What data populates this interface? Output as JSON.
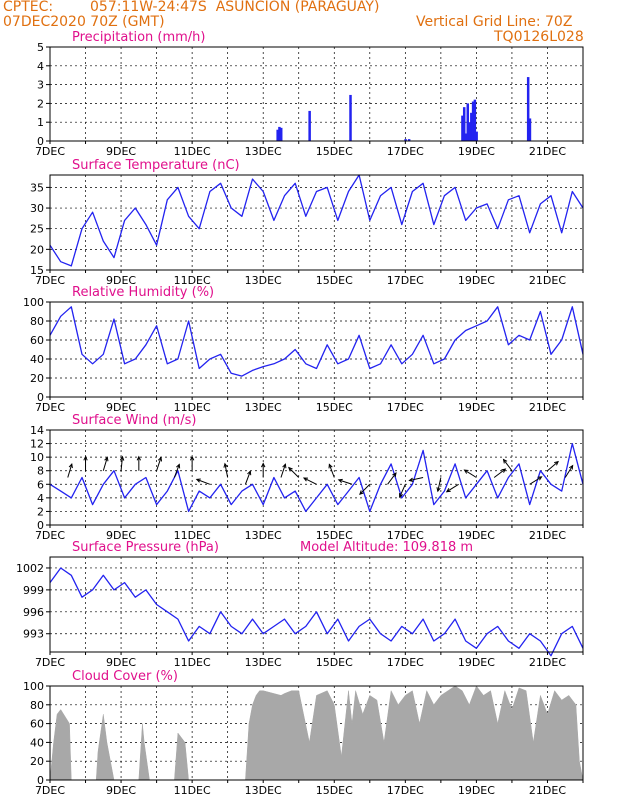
{
  "header": {
    "source": "CPTEC:",
    "location": "057:11W-24:47S  ASUNCION (PARAGUAY)",
    "init_time": "07DEC2020 70Z (GMT)",
    "grid_line": "Vertical Grid Line: 70Z",
    "run_id": "TQ0126L028"
  },
  "colors": {
    "header_text": "#e07010",
    "panel_title": "#e0108c",
    "series": "#2323f0",
    "cloud": "#a8a8a8",
    "arrow": "#000000"
  },
  "chart_data": [
    {
      "type": "bar",
      "title": "Precipitation  (mm/h)",
      "ylim": [
        0,
        5
      ],
      "yticks": [
        "0",
        "1",
        "2",
        "3",
        "4",
        "5"
      ],
      "x_start_day": 7,
      "xticks": [
        "7DEC",
        "9DEC",
        "11DEC",
        "13DEC",
        "15DEC",
        "17DEC",
        "19DEC",
        "21DEC"
      ],
      "x": [
        13.4,
        13.45,
        13.5,
        14.3,
        15.45,
        17.0,
        17.1,
        18.6,
        18.65,
        18.7,
        18.75,
        18.8,
        18.85,
        18.9,
        18.95,
        19.0,
        20.45,
        20.5
      ],
      "values": [
        0.6,
        0.75,
        0.7,
        1.6,
        2.45,
        0.1,
        0.1,
        1.35,
        1.8,
        0.4,
        2.0,
        1.0,
        1.5,
        2.1,
        2.2,
        0.5,
        3.4,
        1.2
      ],
      "grid": true
    },
    {
      "type": "line",
      "title": "Surface Temperature (nC)",
      "ylim": [
        15,
        38
      ],
      "yticks": [
        "15",
        "20",
        "25",
        "30",
        "35"
      ],
      "x_start_day": 7,
      "xticks": [
        "7DEC",
        "9DEC",
        "11DEC",
        "13DEC",
        "15DEC",
        "17DEC",
        "19DEC",
        "21DEC"
      ],
      "x": [
        7.0,
        7.3,
        7.6,
        7.9,
        8.2,
        8.5,
        8.8,
        9.1,
        9.4,
        9.7,
        10.0,
        10.3,
        10.6,
        10.9,
        11.2,
        11.5,
        11.8,
        12.1,
        12.4,
        12.7,
        13.0,
        13.3,
        13.6,
        13.9,
        14.2,
        14.5,
        14.8,
        15.1,
        15.4,
        15.7,
        16.0,
        16.3,
        16.6,
        16.9,
        17.2,
        17.5,
        17.8,
        18.1,
        18.4,
        18.7,
        19.0,
        19.3,
        19.6,
        19.9,
        20.2,
        20.5,
        20.8,
        21.1,
        21.4,
        21.7,
        22.0
      ],
      "values": [
        21,
        17,
        16,
        25,
        29,
        22,
        18,
        27,
        30,
        26,
        21,
        32,
        35,
        28,
        25,
        34,
        36,
        30,
        28,
        37,
        34,
        27,
        33,
        36,
        28,
        34,
        35,
        27,
        34,
        38,
        27,
        33,
        35,
        26,
        34,
        36,
        26,
        33,
        35,
        27,
        30,
        31,
        25,
        32,
        33,
        24,
        31,
        33,
        24,
        34,
        30
      ],
      "grid": true
    },
    {
      "type": "line",
      "title": "Relative Humidity (%)",
      "ylim": [
        0,
        100
      ],
      "yticks": [
        "0",
        "20",
        "40",
        "60",
        "80",
        "100"
      ],
      "x_start_day": 7,
      "xticks": [
        "7DEC",
        "9DEC",
        "11DEC",
        "13DEC",
        "15DEC",
        "17DEC",
        "19DEC",
        "21DEC"
      ],
      "x": [
        7.0,
        7.3,
        7.6,
        7.9,
        8.2,
        8.5,
        8.8,
        9.1,
        9.4,
        9.7,
        10.0,
        10.3,
        10.6,
        10.9,
        11.2,
        11.5,
        11.8,
        12.1,
        12.4,
        12.7,
        13.0,
        13.3,
        13.6,
        13.9,
        14.2,
        14.5,
        14.8,
        15.1,
        15.4,
        15.7,
        16.0,
        16.3,
        16.6,
        16.9,
        17.2,
        17.5,
        17.8,
        18.1,
        18.4,
        18.7,
        19.0,
        19.3,
        19.6,
        19.9,
        20.2,
        20.5,
        20.8,
        21.1,
        21.4,
        21.7,
        22.0
      ],
      "values": [
        65,
        85,
        95,
        45,
        35,
        45,
        82,
        35,
        40,
        55,
        75,
        35,
        40,
        80,
        30,
        40,
        45,
        25,
        22,
        28,
        32,
        35,
        40,
        50,
        35,
        30,
        55,
        35,
        40,
        65,
        30,
        35,
        55,
        35,
        45,
        65,
        35,
        40,
        60,
        70,
        75,
        80,
        95,
        55,
        65,
        60,
        90,
        45,
        60,
        95,
        45
      ],
      "grid": true
    },
    {
      "type": "line",
      "title": "Surface Wind (m/s)",
      "ylim": [
        0,
        14
      ],
      "yticks": [
        "0",
        "2",
        "4",
        "6",
        "8",
        "10",
        "12",
        "14"
      ],
      "x_start_day": 7,
      "xticks": [
        "7DEC",
        "9DEC",
        "11DEC",
        "13DEC",
        "15DEC",
        "17DEC",
        "19DEC",
        "21DEC"
      ],
      "x": [
        7.0,
        7.3,
        7.6,
        7.9,
        8.2,
        8.5,
        8.8,
        9.1,
        9.4,
        9.7,
        10.0,
        10.3,
        10.6,
        10.9,
        11.2,
        11.5,
        11.8,
        12.1,
        12.4,
        12.7,
        13.0,
        13.3,
        13.6,
        13.9,
        14.2,
        14.5,
        14.8,
        15.1,
        15.4,
        15.7,
        16.0,
        16.3,
        16.6,
        16.9,
        17.2,
        17.5,
        17.8,
        18.1,
        18.4,
        18.7,
        19.0,
        19.3,
        19.6,
        19.9,
        20.2,
        20.5,
        20.8,
        21.1,
        21.4,
        21.7,
        22.0
      ],
      "values": [
        6,
        5,
        4,
        7,
        3,
        6,
        8,
        4,
        6,
        7,
        3,
        5,
        8,
        2,
        5,
        4,
        6,
        3,
        5,
        6,
        3,
        7,
        4,
        5,
        2,
        4,
        6,
        3,
        5,
        7,
        2,
        6,
        9,
        4,
        6,
        11,
        3,
        5,
        9,
        4,
        6,
        8,
        4,
        7,
        9,
        3,
        8,
        6,
        5,
        12,
        6
      ],
      "arrows": [
        {
          "x": 7.5,
          "y": 7,
          "u": 0.3,
          "v": 1
        },
        {
          "x": 8.0,
          "y": 8,
          "u": 0,
          "v": 1
        },
        {
          "x": 8.5,
          "y": 8,
          "u": 0.3,
          "v": 1
        },
        {
          "x": 9.0,
          "y": 8,
          "u": 0.1,
          "v": 1
        },
        {
          "x": 9.5,
          "y": 8,
          "u": 0,
          "v": 1
        },
        {
          "x": 10.0,
          "y": 8,
          "u": 0.3,
          "v": 0.9
        },
        {
          "x": 10.5,
          "y": 7,
          "u": 0.3,
          "v": 0.8
        },
        {
          "x": 11.0,
          "y": 8,
          "u": 0,
          "v": 1
        },
        {
          "x": 11.5,
          "y": 6,
          "u": -0.8,
          "v": 0.3
        },
        {
          "x": 12.0,
          "y": 7,
          "u": -0.2,
          "v": 1
        },
        {
          "x": 12.5,
          "y": 6,
          "u": 0.3,
          "v": 0.8
        },
        {
          "x": 13.0,
          "y": 7,
          "u": 0,
          "v": 1
        },
        {
          "x": 13.5,
          "y": 7,
          "u": 0.3,
          "v": 0.9
        },
        {
          "x": 14.0,
          "y": 7,
          "u": -0.7,
          "v": 0.7
        },
        {
          "x": 14.5,
          "y": 6,
          "u": -0.6,
          "v": 0.3
        },
        {
          "x": 15.0,
          "y": 7,
          "u": -0.3,
          "v": 0.8
        },
        {
          "x": 15.5,
          "y": 6,
          "u": -0.9,
          "v": 0.3
        },
        {
          "x": 16.0,
          "y": 6,
          "u": -0.7,
          "v": -0.7
        },
        {
          "x": 16.5,
          "y": 6,
          "u": 0.6,
          "v": 0.8
        },
        {
          "x": 17.0,
          "y": 6,
          "u": -0.4,
          "v": -0.9
        },
        {
          "x": 17.5,
          "y": 7,
          "u": -0.9,
          "v": -0.2
        },
        {
          "x": 18.0,
          "y": 7,
          "u": -0.2,
          "v": -0.9
        },
        {
          "x": 18.5,
          "y": 6,
          "u": -0.8,
          "v": -0.5
        },
        {
          "x": 19.0,
          "y": 7,
          "u": -0.8,
          "v": 0.5
        },
        {
          "x": 19.5,
          "y": 7,
          "u": 0.8,
          "v": 0.6
        },
        {
          "x": 20.0,
          "y": 8,
          "u": -0.6,
          "v": 0.8
        },
        {
          "x": 20.5,
          "y": 6,
          "u": 0.8,
          "v": 0.5
        },
        {
          "x": 21.0,
          "y": 8,
          "u": 0.7,
          "v": 0.6
        },
        {
          "x": 21.5,
          "y": 7,
          "u": 0.5,
          "v": 0.8
        }
      ],
      "grid": true
    },
    {
      "type": "line",
      "title": "Surface Pressure (hPa)",
      "annotation": "Model Altitude: 109.818  m",
      "ylim": [
        990.5,
        1003.5
      ],
      "yticks": [
        "993",
        "996",
        "999",
        "1002"
      ],
      "x_start_day": 7,
      "xticks": [
        "7DEC",
        "9DEC",
        "11DEC",
        "13DEC",
        "15DEC",
        "17DEC",
        "19DEC",
        "21DEC"
      ],
      "x": [
        7.0,
        7.3,
        7.6,
        7.9,
        8.2,
        8.5,
        8.8,
        9.1,
        9.4,
        9.7,
        10.0,
        10.3,
        10.6,
        10.9,
        11.2,
        11.5,
        11.8,
        12.1,
        12.4,
        12.7,
        13.0,
        13.3,
        13.6,
        13.9,
        14.2,
        14.5,
        14.8,
        15.1,
        15.4,
        15.7,
        16.0,
        16.3,
        16.6,
        16.9,
        17.2,
        17.5,
        17.8,
        18.1,
        18.4,
        18.7,
        19.0,
        19.3,
        19.6,
        19.9,
        20.2,
        20.5,
        20.8,
        21.1,
        21.4,
        21.7,
        22.0
      ],
      "values": [
        1000,
        1002,
        1001,
        998,
        999,
        1001,
        999,
        1000,
        998,
        999,
        997,
        996,
        995,
        992,
        994,
        993,
        996,
        994,
        993,
        995,
        993,
        994,
        995,
        993,
        994,
        996,
        993,
        995,
        992,
        994,
        995,
        993,
        992,
        994,
        993,
        995,
        992,
        993,
        995,
        992,
        991,
        993,
        994,
        992,
        991,
        993,
        992,
        990,
        993,
        994,
        991
      ],
      "grid": true
    },
    {
      "type": "area",
      "title": "Cloud Cover (%)",
      "ylim": [
        0,
        100
      ],
      "yticks": [
        "0",
        "20",
        "40",
        "60",
        "80",
        "100"
      ],
      "x_start_day": 7,
      "xticks": [
        "7DEC",
        "9DEC",
        "11DEC",
        "13DEC",
        "15DEC",
        "17DEC",
        "19DEC",
        "21DEC"
      ],
      "x": [
        7.0,
        7.1,
        7.2,
        7.3,
        7.55,
        7.6,
        8.0,
        8.3,
        8.35,
        8.5,
        8.6,
        8.8,
        9.0,
        9.5,
        9.6,
        9.65,
        9.8,
        9.9,
        10.0,
        10.5,
        10.6,
        10.8,
        10.9,
        11.0,
        12.5,
        12.6,
        12.7,
        12.8,
        12.9,
        13.0,
        13.5,
        13.6,
        13.8,
        14.0,
        14.3,
        14.5,
        14.8,
        15.0,
        15.2,
        15.4,
        15.5,
        15.6,
        15.8,
        16.0,
        16.2,
        16.4,
        16.6,
        16.8,
        17.0,
        17.2,
        17.4,
        17.6,
        17.8,
        18.0,
        18.2,
        18.4,
        18.6,
        18.8,
        19.0,
        19.2,
        19.4,
        19.6,
        19.8,
        20.0,
        20.2,
        20.4,
        20.6,
        20.8,
        21.0,
        21.2,
        21.4,
        21.6,
        21.8,
        21.9,
        22.0
      ],
      "values": [
        0,
        40,
        70,
        75,
        60,
        0,
        0,
        0,
        30,
        70,
        40,
        0,
        0,
        0,
        60,
        40,
        0,
        0,
        0,
        0,
        50,
        40,
        0,
        0,
        0,
        60,
        80,
        90,
        95,
        95,
        90,
        92,
        95,
        95,
        40,
        90,
        95,
        80,
        25,
        95,
        60,
        95,
        70,
        90,
        85,
        40,
        95,
        80,
        90,
        95,
        60,
        95,
        80,
        90,
        95,
        100,
        95,
        80,
        100,
        90,
        95,
        60,
        95,
        75,
        98,
        95,
        40,
        90,
        70,
        95,
        85,
        90,
        80,
        20,
        0
      ],
      "grid": true
    }
  ]
}
